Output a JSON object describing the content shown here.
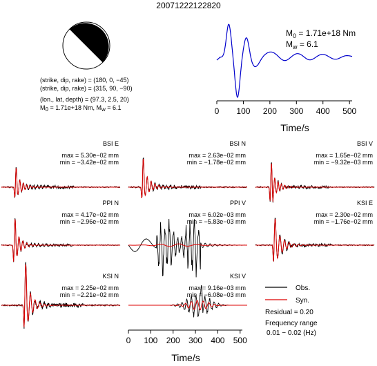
{
  "event_id": "20071222122820",
  "mechanism": {
    "line1": "(strike, dip, rake) = (180, 0, −45)",
    "line2": "(strike, dip, rake) = (315, 90, −90)",
    "line3": "(lon., lat, depth) = (97.3, 2.5, 20)",
    "line4_m0": "M",
    "line4_m0_sub": "0",
    "line4_m0_val": " = 1.71e+18 Nm, M",
    "line4_mw_sub": "w",
    "line4_mw_val": " = 6.1"
  },
  "stf": {
    "m0_label": "M",
    "m0_sub": "0",
    "m0_text": " = 1.71e+18 Nm",
    "mw_label": "M",
    "mw_sub": "w",
    "mw_text": " = 6.1",
    "xlabel": "Time/s",
    "xticks": [
      "0",
      "100",
      "200",
      "300",
      "400",
      "500"
    ],
    "color": "#0000cc"
  },
  "legend": {
    "obs": "Obs.",
    "syn": "Syn.",
    "residual": "Residual = 0.20",
    "freq_title": "Frequency range",
    "freq_range": "0.01 − 0.02 (Hz)",
    "obs_color": "#000000",
    "syn_color": "#dd0000"
  },
  "bottom_axis": {
    "xlabel": "Time/s",
    "xticks": [
      "0",
      "100",
      "200",
      "300",
      "400",
      "500"
    ]
  },
  "chart_data": {
    "type": "line",
    "title": "20071222122820",
    "source_time_function": {
      "x_range": [
        0,
        510
      ],
      "xlabel": "Time/s",
      "shape": "blue waveform: rise at ~10 s, peak ~45 s, trough ~75 s, peak ~110 s, decaying ripple to 510 s"
    },
    "stations": [
      {
        "name": "BSI E",
        "max": "max = 5.30e−02 mm",
        "min": "min = −3.42e−02 mm"
      },
      {
        "name": "BSI N",
        "max": "max = 2.63e−02 mm",
        "min": "min = −1.78e−02 mm"
      },
      {
        "name": "BSI V",
        "max": "max = 1.65e−02 mm",
        "min": "min = −9.32e−03 mm"
      },
      {
        "name": "PPI N",
        "max": "max = 4.17e−02 mm",
        "min": "min = −2.96e−02 mm"
      },
      {
        "name": "PPI V",
        "max": "max = 6.02e−03 mm",
        "min": "min = −5.83e−03 mm"
      },
      {
        "name": "KSI E",
        "max": "max = 2.30e−02 mm",
        "min": "min = −1.76e−02 mm"
      },
      {
        "name": "KSI N",
        "max": "max = 2.25e−02 mm",
        "min": "min = −2.21e−02 mm"
      },
      {
        "name": "KSI V",
        "max": "max = 9.16e−03 mm",
        "min": "min = −6.08e−03 mm"
      }
    ],
    "x_range": [
      0,
      510
    ],
    "xlabel": "Time/s",
    "series": [
      {
        "name": "Obs."
      },
      {
        "name": "Syn."
      }
    ]
  }
}
